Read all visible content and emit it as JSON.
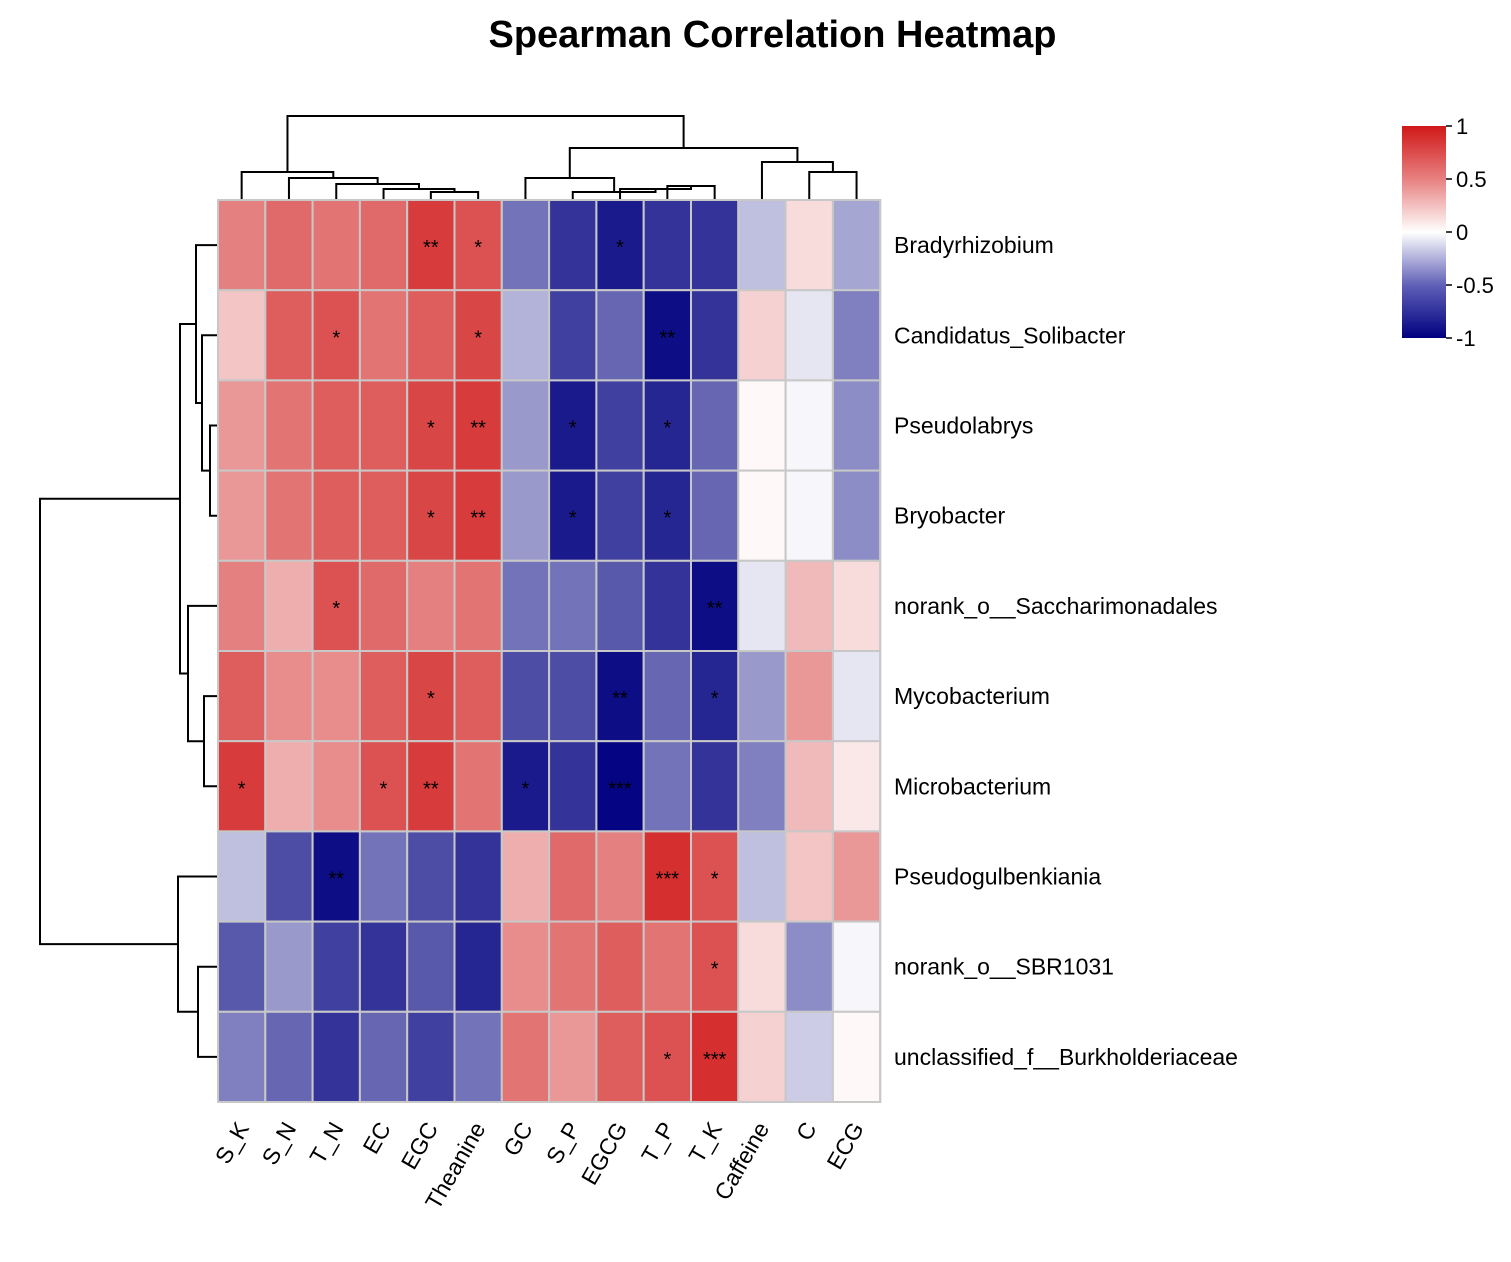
{
  "chart_data": {
    "type": "heatmap",
    "title": "Spearman Correlation Heatmap",
    "columns": [
      "S_K",
      "S_N",
      "T_N",
      "EC",
      "EGC",
      "Theanine",
      "GC",
      "S_P",
      "EGCG",
      "T_P",
      "T_K",
      "Caffeine",
      "C",
      "ECG"
    ],
    "rows": [
      "Bradyrhizobium",
      "Candidatus_Solibacter",
      "Pseudolabrys",
      "Bryobacter",
      "norank_o__Saccharimonadales",
      "Mycobacterium",
      "Microbacterium",
      "Pseudogulbenkiania",
      "norank_o__SBR1031",
      "unclassified_f__Burkholderiaceae"
    ],
    "values": [
      [
        0.55,
        0.65,
        0.6,
        0.65,
        0.85,
        0.75,
        -0.55,
        -0.8,
        -0.9,
        -0.8,
        -0.8,
        -0.25,
        0.15,
        -0.35
      ],
      [
        0.25,
        0.7,
        0.75,
        0.6,
        0.7,
        0.8,
        -0.3,
        -0.75,
        -0.6,
        -0.95,
        -0.8,
        0.2,
        -0.1,
        -0.5
      ],
      [
        0.45,
        0.6,
        0.7,
        0.7,
        0.8,
        0.85,
        -0.4,
        -0.9,
        -0.75,
        -0.85,
        -0.6,
        0.03,
        -0.03,
        -0.45
      ],
      [
        0.45,
        0.6,
        0.7,
        0.7,
        0.8,
        0.85,
        -0.4,
        -0.9,
        -0.75,
        -0.85,
        -0.6,
        0.03,
        -0.03,
        -0.45
      ],
      [
        0.55,
        0.35,
        0.75,
        0.65,
        0.55,
        0.6,
        -0.55,
        -0.55,
        -0.65,
        -0.8,
        -0.95,
        -0.1,
        0.3,
        0.15
      ],
      [
        0.7,
        0.5,
        0.5,
        0.7,
        0.8,
        0.7,
        -0.7,
        -0.7,
        -0.95,
        -0.6,
        -0.85,
        -0.4,
        0.45,
        -0.1
      ],
      [
        0.85,
        0.35,
        0.5,
        0.75,
        0.85,
        0.6,
        -0.9,
        -0.8,
        -0.98,
        -0.55,
        -0.8,
        -0.5,
        0.3,
        0.1
      ],
      [
        -0.25,
        -0.7,
        -0.95,
        -0.55,
        -0.7,
        -0.8,
        0.35,
        0.65,
        0.55,
        0.9,
        0.75,
        -0.25,
        0.25,
        0.45
      ],
      [
        -0.65,
        -0.4,
        -0.75,
        -0.8,
        -0.65,
        -0.85,
        0.5,
        0.6,
        0.7,
        0.6,
        0.75,
        0.15,
        -0.45,
        -0.03
      ],
      [
        -0.5,
        -0.6,
        -0.8,
        -0.6,
        -0.75,
        -0.55,
        0.6,
        0.45,
        0.7,
        0.75,
        0.9,
        0.2,
        -0.2,
        0.03
      ]
    ],
    "significance": [
      [
        "",
        "",
        "",
        "",
        "**",
        "*",
        "",
        "",
        "*",
        "",
        "",
        "",
        "",
        ""
      ],
      [
        "",
        "",
        "*",
        "",
        "",
        "*",
        "",
        "",
        "",
        "**",
        "",
        "",
        "",
        ""
      ],
      [
        "",
        "",
        "",
        "",
        "*",
        "**",
        "",
        "*",
        "",
        "*",
        "",
        "",
        "",
        ""
      ],
      [
        "",
        "",
        "",
        "",
        "*",
        "**",
        "",
        "*",
        "",
        "*",
        "",
        "",
        "",
        ""
      ],
      [
        "",
        "",
        "*",
        "",
        "",
        "",
        "",
        "",
        "",
        "",
        "**",
        "",
        "",
        ""
      ],
      [
        "",
        "",
        "",
        "",
        "*",
        "",
        "",
        "",
        "**",
        "",
        "*",
        "",
        "",
        ""
      ],
      [
        "*",
        "",
        "",
        "*",
        "**",
        "",
        "*",
        "",
        "***",
        "",
        "",
        "",
        "",
        ""
      ],
      [
        "",
        "",
        "**",
        "",
        "",
        "",
        "",
        "",
        "",
        "***",
        "*",
        "",
        "",
        ""
      ],
      [
        "",
        "",
        "",
        "",
        "",
        "",
        "",
        "",
        "",
        "",
        "*",
        "",
        "",
        ""
      ],
      [
        "",
        "",
        "",
        "",
        "",
        "",
        "",
        "",
        "",
        "*",
        "***",
        "",
        "",
        ""
      ]
    ],
    "color_scale": {
      "range": [
        -1,
        1
      ],
      "ticks": [
        "1",
        "0.5",
        "0",
        "-0.5",
        "-1"
      ],
      "tick_values": [
        1,
        0.5,
        0,
        -0.5,
        -1
      ],
      "low_color": "#000080",
      "mid_color": "#ffffff",
      "high_color": "#d01818"
    },
    "legend_position": "top-right",
    "column_dendrogram": "top",
    "row_dendrogram": "left"
  }
}
